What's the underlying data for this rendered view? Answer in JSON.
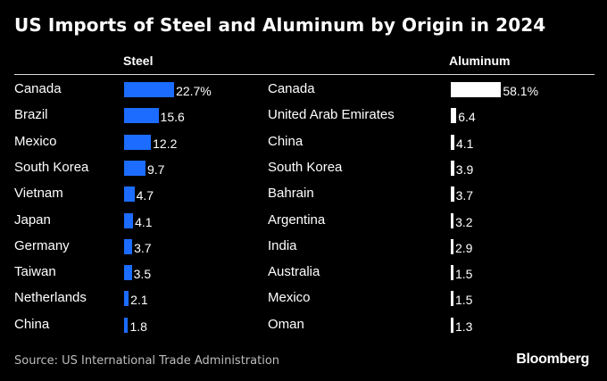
{
  "chart_data": {
    "type": "bar",
    "title": "US Imports of Steel and Aluminum by Origin in 2024",
    "panels": [
      {
        "header": "Steel",
        "color": "#1b6cff",
        "categories": [
          "Canada",
          "Brazil",
          "Mexico",
          "South Korea",
          "Vietnam",
          "Japan",
          "Germany",
          "Taiwan",
          "Netherlands",
          "China"
        ],
        "values": [
          22.7,
          15.6,
          12.2,
          9.7,
          4.7,
          4.1,
          3.7,
          3.5,
          2.1,
          1.8
        ],
        "value_labels": [
          "22.7%",
          "15.6",
          "12.2",
          "9.7",
          "4.7",
          "4.1",
          "3.7",
          "3.5",
          "2.1",
          "1.8"
        ]
      },
      {
        "header": "Aluminum",
        "color": "#ffffff",
        "categories": [
          "Canada",
          "United Arab Emirates",
          "China",
          "South Korea",
          "Bahrain",
          "Argentina",
          "India",
          "Australia",
          "Mexico",
          "Oman"
        ],
        "values": [
          58.1,
          6.4,
          4.1,
          3.9,
          3.7,
          3.2,
          2.9,
          1.5,
          1.5,
          1.3
        ],
        "value_labels": [
          "58.1%",
          "6.4",
          "4.1",
          "3.9",
          "3.7",
          "3.2",
          "2.9",
          "1.5",
          "1.5",
          "1.3"
        ]
      }
    ]
  },
  "footer": {
    "source": "Source: US International Trade Administration",
    "brand": "Bloomberg"
  }
}
